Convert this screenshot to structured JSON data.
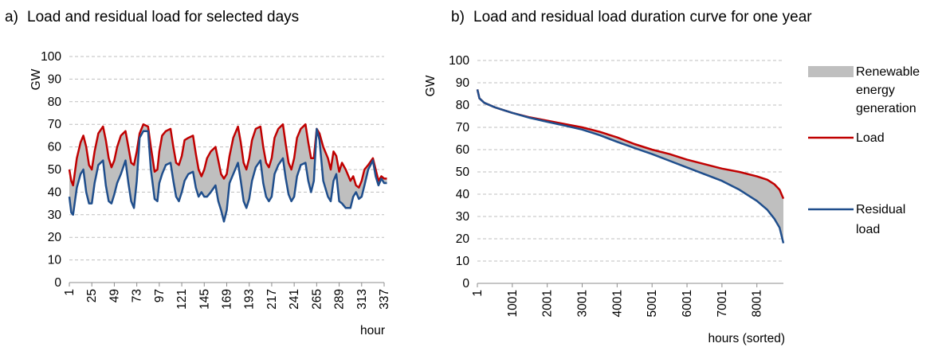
{
  "chart_data": [
    {
      "type": "area",
      "panel": "a)",
      "title": "Load and residual load for selected days",
      "xlabel": "hour",
      "ylabel": "GW",
      "ylim": [
        0,
        100
      ],
      "y_ticks": [
        0,
        10,
        20,
        30,
        40,
        50,
        60,
        70,
        80,
        90,
        100
      ],
      "x_ticks": [
        "1",
        "25",
        "49",
        "73",
        "97",
        "121",
        "145",
        "169",
        "193",
        "217",
        "241",
        "265",
        "289",
        "313",
        "337"
      ],
      "xlim": [
        1,
        337
      ],
      "grid": "horizontal dashed",
      "series": [
        {
          "name": "Load",
          "color": "#c00000",
          "x": [
            1,
            3,
            5,
            9,
            13,
            16,
            19,
            22,
            25,
            28,
            32,
            37,
            40,
            43,
            46,
            49,
            52,
            56,
            61,
            64,
            67,
            70,
            73,
            76,
            80,
            85,
            88,
            92,
            95,
            97,
            100,
            104,
            109,
            112,
            115,
            118,
            121,
            124,
            128,
            133,
            136,
            139,
            142,
            145,
            148,
            152,
            157,
            160,
            163,
            166,
            169,
            172,
            176,
            181,
            184,
            187,
            190,
            193,
            196,
            200,
            205,
            208,
            211,
            214,
            217,
            220,
            224,
            229,
            232,
            235,
            238,
            241,
            244,
            248,
            253,
            256,
            259,
            262,
            265,
            268,
            272,
            277,
            280,
            283,
            286,
            289,
            292,
            296,
            301,
            304,
            307,
            310,
            313,
            316,
            320,
            325,
            328,
            331,
            334,
            337,
            340
          ],
          "values": [
            50,
            45,
            43,
            55,
            62,
            65,
            60,
            52,
            50,
            58,
            66,
            69,
            63,
            55,
            51,
            54,
            60,
            65,
            67,
            60,
            53,
            52,
            58,
            66,
            70,
            69,
            60,
            49,
            50,
            58,
            65,
            67,
            68,
            60,
            53,
            52,
            56,
            63,
            64,
            65,
            57,
            50,
            47,
            50,
            55,
            58,
            60,
            54,
            48,
            46,
            48,
            56,
            64,
            69,
            62,
            53,
            50,
            55,
            63,
            68,
            69,
            60,
            53,
            51,
            55,
            64,
            68,
            70,
            61,
            53,
            50,
            55,
            64,
            68,
            70,
            62,
            55,
            55,
            68,
            66,
            60,
            55,
            50,
            58,
            56,
            49,
            53,
            50,
            45,
            47,
            43,
            42,
            45,
            50,
            52,
            55,
            50,
            45,
            47,
            46,
            46
          ]
        },
        {
          "name": "Residual load",
          "color": "#1f4e8c",
          "x": [
            1,
            3,
            5,
            9,
            13,
            16,
            19,
            22,
            25,
            28,
            32,
            37,
            40,
            43,
            46,
            49,
            52,
            56,
            61,
            64,
            67,
            70,
            73,
            76,
            80,
            85,
            88,
            92,
            95,
            97,
            100,
            104,
            109,
            112,
            115,
            118,
            121,
            124,
            128,
            133,
            136,
            139,
            142,
            145,
            148,
            152,
            157,
            160,
            163,
            166,
            169,
            172,
            176,
            181,
            184,
            187,
            190,
            193,
            196,
            200,
            205,
            208,
            211,
            214,
            217,
            220,
            224,
            229,
            232,
            235,
            238,
            241,
            244,
            248,
            253,
            256,
            259,
            262,
            265,
            268,
            272,
            277,
            280,
            283,
            286,
            289,
            292,
            296,
            301,
            304,
            307,
            310,
            313,
            316,
            320,
            325,
            328,
            331,
            334,
            337,
            340
          ],
          "values": [
            38,
            31,
            30,
            42,
            48,
            50,
            40,
            35,
            35,
            44,
            52,
            54,
            43,
            36,
            35,
            39,
            44,
            48,
            54,
            44,
            36,
            33,
            45,
            64,
            67,
            67,
            50,
            37,
            36,
            44,
            48,
            52,
            53,
            45,
            38,
            36,
            40,
            45,
            48,
            49,
            42,
            38,
            40,
            38,
            38,
            40,
            43,
            36,
            32,
            27,
            32,
            44,
            48,
            53,
            45,
            36,
            33,
            37,
            45,
            51,
            54,
            44,
            38,
            36,
            38,
            48,
            52,
            55,
            46,
            39,
            36,
            38,
            47,
            52,
            53,
            45,
            40,
            45,
            68,
            63,
            45,
            38,
            36,
            45,
            48,
            36,
            35,
            33,
            33,
            38,
            40,
            37,
            38,
            43,
            50,
            54,
            47,
            43,
            46,
            44,
            44
          ]
        }
      ]
    },
    {
      "type": "area",
      "panel": "b)",
      "title": "Load and residual load duration curve for one year",
      "xlabel": "hours (sorted)",
      "ylabel": "GW",
      "ylim": [
        0,
        100
      ],
      "y_ticks": [
        0,
        10,
        20,
        30,
        40,
        50,
        60,
        70,
        80,
        90,
        100
      ],
      "x_ticks": [
        "1",
        "1001",
        "2001",
        "3001",
        "4001",
        "5001",
        "6001",
        "7001",
        "8001"
      ],
      "xlim": [
        1,
        8760
      ],
      "grid": "horizontal dashed",
      "legend_position": "right",
      "legend": [
        "Renewable energy generation",
        "Load",
        "Residual load"
      ],
      "fill_color": "#bfbfbf",
      "series": [
        {
          "name": "Load",
          "color": "#c00000",
          "x": [
            1,
            60,
            200,
            500,
            1000,
            1500,
            2000,
            2500,
            3000,
            3500,
            4000,
            4500,
            5000,
            5500,
            6000,
            6500,
            7000,
            7500,
            8000,
            8300,
            8500,
            8650,
            8760
          ],
          "values": [
            87,
            83,
            81,
            79,
            76.5,
            74.5,
            73,
            71.5,
            70,
            68,
            65.5,
            62.5,
            60,
            58,
            55.5,
            53.5,
            51.5,
            50,
            48,
            46.5,
            44.5,
            42,
            38
          ]
        },
        {
          "name": "Residual load",
          "color": "#1f4e8c",
          "x": [
            1,
            60,
            200,
            500,
            1000,
            1500,
            2000,
            2500,
            3000,
            3500,
            4000,
            4500,
            5000,
            5500,
            6000,
            6500,
            7000,
            7500,
            8000,
            8300,
            8500,
            8650,
            8760
          ],
          "values": [
            87,
            83,
            81,
            79,
            76.5,
            74.3,
            72.5,
            70.8,
            69,
            66.5,
            63.5,
            60.7,
            58,
            55,
            52,
            49,
            46,
            42,
            37,
            33,
            29,
            25,
            18
          ]
        }
      ]
    }
  ]
}
